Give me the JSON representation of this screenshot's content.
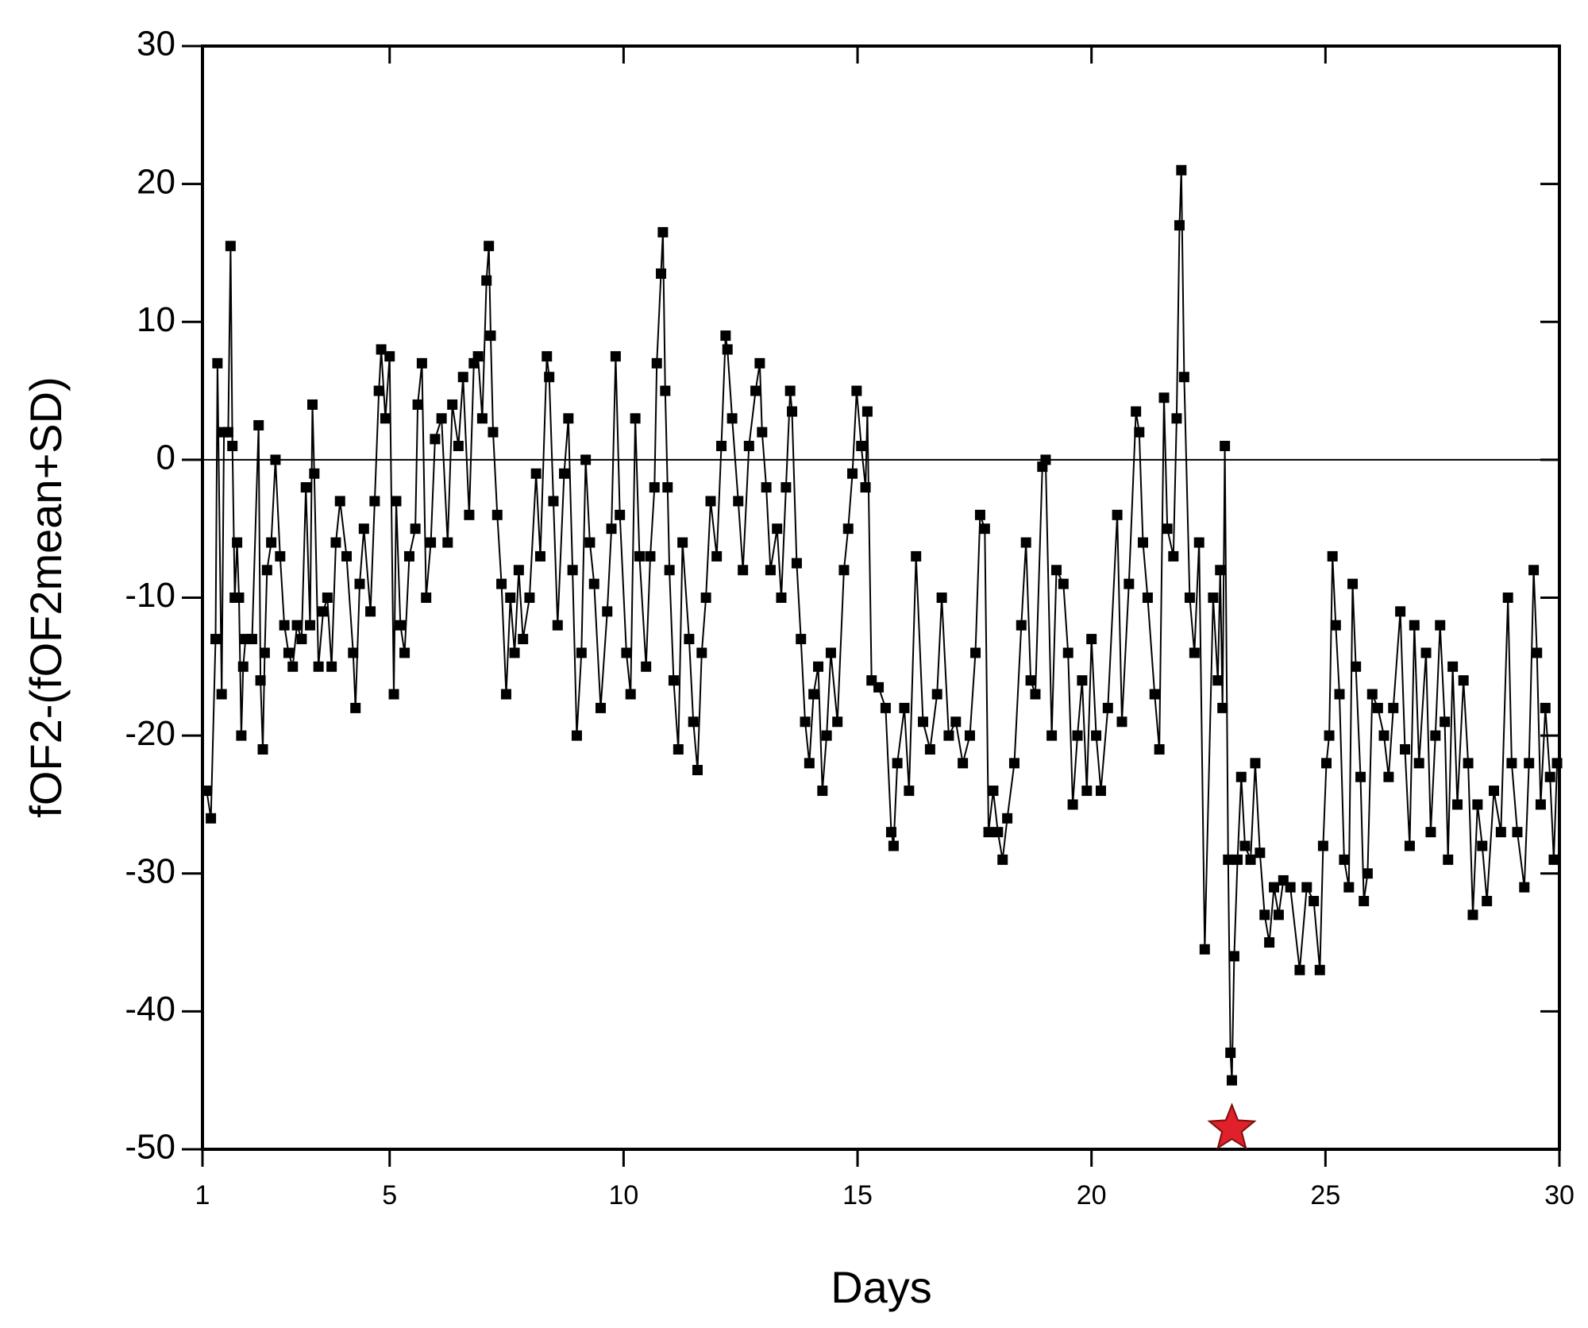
{
  "chart_data": {
    "type": "line",
    "xlabel": "Days",
    "ylabel": "fOF2-(fOF2mean+SD)",
    "xlim": [
      1,
      30
    ],
    "xticks": [
      1,
      5,
      10,
      15,
      20,
      25,
      30
    ],
    "ylim": [
      -50,
      30
    ],
    "yticks": [
      -50,
      -40,
      -30,
      -20,
      -10,
      0,
      10,
      20,
      30
    ],
    "hline": 0,
    "marker": {
      "x": 23,
      "y": -48.5,
      "color": "#e0202a"
    },
    "series": [
      {
        "color": "#000000",
        "x": [
          1.09,
          1.18,
          1.28,
          1.32,
          1.41,
          1.46,
          1.55,
          1.6,
          1.64,
          1.69,
          1.74,
          1.78,
          1.83,
          1.87,
          1.92,
          2.06,
          2.2,
          2.24,
          2.29,
          2.33,
          2.38,
          2.47,
          2.56,
          2.66,
          2.75,
          2.84,
          2.93,
          3.02,
          3.12,
          3.21,
          3.3,
          3.35,
          3.39,
          3.48,
          3.58,
          3.67,
          3.76,
          3.85,
          3.94,
          4.08,
          4.22,
          4.27,
          4.36,
          4.45,
          4.59,
          4.68,
          4.77,
          4.82,
          4.91,
          5.0,
          5.09,
          5.14,
          5.23,
          5.32,
          5.42,
          5.55,
          5.6,
          5.69,
          5.78,
          5.88,
          5.97,
          6.11,
          6.24,
          6.34,
          6.47,
          6.57,
          6.7,
          6.8,
          6.89,
          6.98,
          7.07,
          7.12,
          7.16,
          7.21,
          7.3,
          7.39,
          7.49,
          7.58,
          7.67,
          7.76,
          7.85,
          7.99,
          8.13,
          8.22,
          8.36,
          8.41,
          8.5,
          8.59,
          8.73,
          8.82,
          8.91,
          9.0,
          9.1,
          9.19,
          9.28,
          9.37,
          9.51,
          9.65,
          9.74,
          9.83,
          9.92,
          10.06,
          10.15,
          10.25,
          10.34,
          10.48,
          10.57,
          10.66,
          10.71,
          10.8,
          10.84,
          10.89,
          10.94,
          10.98,
          11.07,
          11.17,
          11.26,
          11.4,
          11.49,
          11.58,
          11.67,
          11.76,
          11.86,
          11.99,
          12.09,
          12.18,
          12.22,
          12.32,
          12.45,
          12.55,
          12.68,
          12.82,
          12.91,
          12.96,
          13.05,
          13.14,
          13.28,
          13.37,
          13.47,
          13.56,
          13.6,
          13.7,
          13.79,
          13.88,
          13.97,
          14.06,
          14.16,
          14.25,
          14.34,
          14.43,
          14.57,
          14.71,
          14.8,
          14.89,
          14.98,
          15.08,
          15.17,
          15.21,
          15.3,
          15.45,
          15.6,
          15.72,
          15.77,
          15.85,
          16.0,
          16.1,
          16.25,
          16.4,
          16.55,
          16.7,
          16.8,
          16.95,
          17.1,
          17.25,
          17.4,
          17.52,
          17.62,
          17.72,
          17.8,
          17.9,
          18.0,
          18.1,
          18.2,
          18.35,
          18.5,
          18.6,
          18.7,
          18.8,
          18.95,
          19.02,
          19.15,
          19.25,
          19.4,
          19.5,
          19.6,
          19.7,
          19.8,
          19.9,
          20.0,
          20.1,
          20.2,
          20.35,
          20.55,
          20.65,
          20.8,
          20.95,
          21.02,
          21.1,
          21.2,
          21.35,
          21.45,
          21.55,
          21.62,
          21.75,
          21.82,
          21.88,
          21.92,
          21.98,
          22.1,
          22.2,
          22.3,
          22.42,
          22.6,
          22.7,
          22.75,
          22.8,
          22.85,
          22.92,
          22.97,
          23.0,
          23.05,
          23.12,
          23.2,
          23.28,
          23.4,
          23.5,
          23.6,
          23.7,
          23.8,
          23.9,
          24.0,
          24.1,
          24.25,
          24.45,
          24.6,
          24.75,
          24.88,
          24.95,
          25.02,
          25.08,
          25.15,
          25.22,
          25.3,
          25.4,
          25.5,
          25.58,
          25.65,
          25.75,
          25.82,
          25.9,
          26.0,
          26.12,
          26.25,
          26.35,
          26.45,
          26.6,
          26.7,
          26.8,
          26.9,
          27.0,
          27.15,
          27.25,
          27.35,
          27.45,
          27.55,
          27.62,
          27.72,
          27.82,
          27.95,
          28.05,
          28.15,
          28.25,
          28.35,
          28.45,
          28.6,
          28.75,
          28.9,
          28.98,
          29.1,
          29.25,
          29.35,
          29.45,
          29.52,
          29.6,
          29.7,
          29.8,
          29.88,
          29.95
        ],
        "values": [
          -24,
          -26,
          -13,
          7,
          -17,
          2,
          2,
          15.5,
          1,
          -10,
          -6,
          -10,
          -20,
          -15,
          -13,
          -13,
          2.5,
          -16,
          -21,
          -14,
          -8,
          -6,
          0,
          -7,
          -12,
          -14,
          -15,
          -12,
          -13,
          -2,
          -12,
          4,
          -1,
          -15,
          -11,
          -10,
          -15,
          -6,
          -3,
          -7,
          -14,
          -18,
          -9,
          -5,
          -11,
          -3,
          5,
          8,
          3,
          7.5,
          -17,
          -3,
          -12,
          -14,
          -7,
          -5,
          4,
          7,
          -10,
          -6,
          1.5,
          3,
          -6,
          4,
          1,
          6,
          -4,
          7,
          7.5,
          3,
          13,
          15.5,
          9,
          2,
          -4,
          -9,
          -17,
          -10,
          -14,
          -8,
          -13,
          -10,
          -1,
          -7,
          7.5,
          6,
          -3,
          -12,
          -1,
          3,
          -8,
          -20,
          -14,
          0,
          -6,
          -9,
          -18,
          -11,
          -5,
          7.5,
          -4,
          -14,
          -17,
          3,
          -7,
          -15,
          -7,
          -2,
          7,
          13.5,
          16.5,
          5,
          -2,
          -8,
          -16,
          -21,
          -6,
          -13,
          -19,
          -22.5,
          -14,
          -10,
          -3,
          -7,
          1,
          9,
          8,
          3,
          -3,
          -8,
          1,
          5,
          7,
          2,
          -2,
          -8,
          -5,
          -10,
          -2,
          5,
          3.5,
          -7.5,
          -13,
          -19,
          -22,
          -17,
          -15,
          -24,
          -20,
          -14,
          -19,
          -8,
          -5,
          -1,
          5,
          1,
          -2,
          3.5,
          -16,
          -16.5,
          -18,
          -27,
          -28,
          -22,
          -18,
          -24,
          -7,
          -19,
          -21,
          -17,
          -10,
          -20,
          -19,
          -22,
          -20,
          -14,
          -4,
          -5,
          -27,
          -24,
          -27,
          -29,
          -26,
          -22,
          -12,
          -6,
          -16,
          -17,
          -0.5,
          0,
          -20,
          -8,
          -9,
          -14,
          -25,
          -20,
          -16,
          -24,
          -13,
          -20,
          -24,
          -18,
          -4,
          -19,
          -9,
          3.5,
          2,
          -6,
          -10,
          -17,
          -21,
          4.5,
          -5,
          -7,
          3,
          17,
          21,
          6,
          -10,
          -14,
          -6,
          -35.5,
          -10,
          -16,
          -8,
          -18,
          1,
          -29,
          -43,
          -45,
          -36,
          -29,
          -23,
          -28,
          -29,
          -22,
          -28.5,
          -33,
          -35,
          -31,
          -33,
          -30.5,
          -31,
          -37,
          -31,
          -32,
          -37,
          -28,
          -22,
          -20,
          -7,
          -12,
          -17,
          -29,
          -31,
          -9,
          -15,
          -23,
          -32,
          -30,
          -17,
          -18,
          -20,
          -23,
          -18,
          -11,
          -21,
          -28,
          -12,
          -22,
          -14,
          -27,
          -20,
          -12,
          -19,
          -29,
          -15,
          -25,
          -16,
          -22,
          -33,
          -25,
          -28,
          -32,
          -24,
          -27,
          -10,
          -22,
          -27,
          -31,
          -22,
          -8,
          -14,
          -25,
          -18,
          -23,
          -29,
          -22
        ]
      }
    ]
  }
}
